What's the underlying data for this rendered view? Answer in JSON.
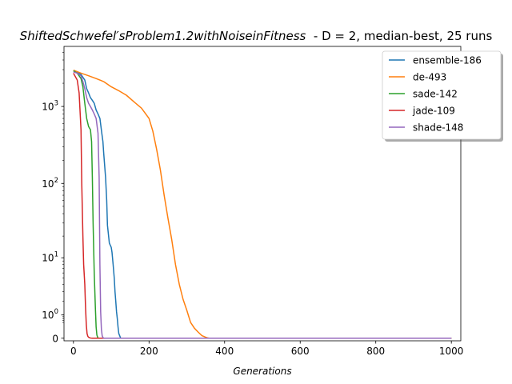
{
  "chart_data": {
    "type": "line",
    "title": {
      "italic": "ShiftedSchwefel′sProblem1.2withNoiseinFitness",
      "rest": "  - D = 2, median-best, 25 runs"
    },
    "xlabel": "Generations",
    "ylabel": "",
    "yscale": "symlog",
    "xlim": [
      -25,
      1025
    ],
    "ylim": [
      -0.08,
      6000
    ],
    "xticks": [
      0,
      200,
      400,
      600,
      800,
      1000
    ],
    "xtick_labels": [
      "0",
      "200",
      "400",
      "600",
      "800",
      "1000"
    ],
    "yticks": [
      0,
      1,
      10,
      100,
      1000
    ],
    "ytick_labels": [
      {
        "base": "0",
        "exp": ""
      },
      {
        "base": "10",
        "exp": "0"
      },
      {
        "base": "10",
        "exp": "1"
      },
      {
        "base": "10",
        "exp": "2"
      },
      {
        "base": "10",
        "exp": "3"
      }
    ],
    "legend": "top-right",
    "series": [
      {
        "name": "ensemble-186",
        "color": "#1f77b4",
        "x": [
          0,
          10,
          20,
          30,
          35,
          40,
          45,
          50,
          55,
          60,
          65,
          70,
          75,
          78,
          80,
          85,
          88,
          90,
          95,
          100,
          102,
          105,
          108,
          110,
          112,
          114,
          116,
          118,
          120,
          125,
          1000
        ],
        "y": [
          2900,
          2800,
          2600,
          2200,
          1700,
          1500,
          1300,
          1200,
          1100,
          900,
          800,
          700,
          450,
          350,
          250,
          120,
          60,
          28,
          16,
          14,
          12,
          8,
          5,
          3,
          2,
          1.2,
          0.8,
          0.4,
          0.15,
          0,
          0
        ]
      },
      {
        "name": "de-493",
        "color": "#ff7f0e",
        "x": [
          0,
          20,
          40,
          60,
          80,
          100,
          120,
          140,
          160,
          180,
          200,
          210,
          220,
          230,
          240,
          250,
          260,
          270,
          280,
          290,
          300,
          310,
          320,
          330,
          340,
          350,
          355,
          360,
          1000
        ],
        "y": [
          2950,
          2700,
          2500,
          2300,
          2100,
          1800,
          1600,
          1400,
          1150,
          950,
          700,
          480,
          280,
          150,
          70,
          35,
          18,
          8,
          4,
          2.2,
          1.3,
          0.6,
          0.35,
          0.2,
          0.08,
          0.03,
          0.01,
          0,
          0
        ]
      },
      {
        "name": "sade-142",
        "color": "#2ca02c",
        "x": [
          0,
          10,
          20,
          25,
          30,
          35,
          40,
          45,
          48,
          50,
          52,
          55,
          58,
          60,
          62,
          64,
          66,
          70,
          1000
        ],
        "y": [
          2900,
          2700,
          2300,
          1800,
          1100,
          700,
          550,
          500,
          350,
          120,
          30,
          6,
          1.5,
          0.4,
          0.1,
          0.03,
          0,
          0,
          0
        ]
      },
      {
        "name": "jade-109",
        "color": "#d62728",
        "x": [
          0,
          10,
          15,
          20,
          22,
          25,
          27,
          30,
          32,
          34,
          36,
          38,
          40,
          43,
          45,
          50,
          1000
        ],
        "y": [
          2700,
          2200,
          1500,
          500,
          100,
          20,
          8,
          4,
          1.5,
          0.5,
          0.15,
          0.06,
          0.03,
          0.015,
          0.005,
          0,
          0
        ]
      },
      {
        "name": "shade-148",
        "color": "#9467bd",
        "x": [
          0,
          10,
          20,
          25,
          30,
          35,
          40,
          45,
          50,
          55,
          60,
          65,
          68,
          70,
          72,
          74,
          76,
          78,
          80,
          85,
          1000
        ],
        "y": [
          2800,
          2700,
          2500,
          2100,
          1700,
          1300,
          1100,
          1000,
          900,
          800,
          700,
          450,
          120,
          8,
          1.2,
          0.3,
          0.08,
          0.02,
          0.005,
          0,
          0
        ]
      }
    ]
  }
}
